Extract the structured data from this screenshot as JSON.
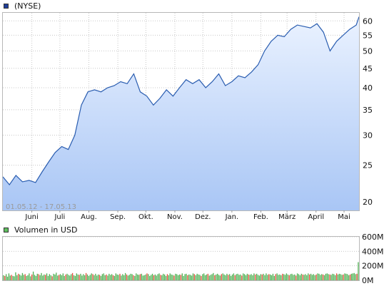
{
  "price_legend": {
    "label": "(NYSE)",
    "color": "#1f3f99"
  },
  "volume_legend": {
    "label": "Volumen in USD",
    "color": "#5fbf5f"
  },
  "date_range_label": "01.05.12 - 17.05.13",
  "colors": {
    "line": "#2a5db0",
    "fill_top": "#eaf2ff",
    "fill_bottom": "#a9c6f5",
    "vol_up": "#4caf50",
    "vol_down": "#e74c3c",
    "grid": "#c8c8c8"
  },
  "chart_data": [
    {
      "type": "area",
      "y_scale": "log",
      "ylim": [
        19,
        63
      ],
      "yticks": [
        20,
        25,
        30,
        35,
        40,
        45,
        50,
        55,
        60
      ],
      "x_month_labels": [
        "Juni",
        "Juli",
        "Aug.",
        "Sep.",
        "Okt.",
        "Nov.",
        "Dez.",
        "Jan.",
        "Feb.",
        "März",
        "April",
        "Mai"
      ],
      "grid": true,
      "x_range": [
        "2012-05-01",
        "2013-05-17"
      ],
      "series": [
        {
          "x": [
            "2012-05-01",
            "2012-05-08",
            "2012-05-15",
            "2012-05-22",
            "2012-05-29",
            "2012-06-05",
            "2012-06-12",
            "2012-06-19",
            "2012-06-26",
            "2012-07-03",
            "2012-07-10",
            "2012-07-17",
            "2012-07-24",
            "2012-07-31",
            "2012-08-07",
            "2012-08-14",
            "2012-08-21",
            "2012-08-28",
            "2012-09-04",
            "2012-09-11",
            "2012-09-18",
            "2012-09-25",
            "2012-10-02",
            "2012-10-09",
            "2012-10-16",
            "2012-10-23",
            "2012-10-30",
            "2012-11-06",
            "2012-11-13",
            "2012-11-20",
            "2012-11-27",
            "2012-12-04",
            "2012-12-11",
            "2012-12-18",
            "2012-12-25",
            "2013-01-01",
            "2013-01-08",
            "2013-01-15",
            "2013-01-22",
            "2013-01-29",
            "2013-02-05",
            "2013-02-12",
            "2013-02-19",
            "2013-02-26",
            "2013-03-05",
            "2013-03-12",
            "2013-03-19",
            "2013-03-26",
            "2013-04-02",
            "2013-04-09",
            "2013-04-16",
            "2013-04-23",
            "2013-04-30",
            "2013-05-07",
            "2013-05-14",
            "2013-05-17"
          ],
          "values": [
            23.3,
            22.2,
            23.5,
            22.6,
            22.8,
            22.5,
            24.0,
            25.5,
            27.0,
            28.0,
            27.5,
            30.0,
            36.0,
            39.0,
            39.5,
            39.0,
            40.0,
            40.5,
            41.5,
            41.0,
            43.5,
            39.0,
            38.0,
            36.0,
            37.5,
            39.5,
            38.0,
            40.0,
            42.0,
            41.0,
            42.0,
            40.0,
            41.5,
            43.5,
            40.5,
            41.5,
            43.0,
            42.5,
            44.0,
            46.0,
            50.0,
            53.0,
            55.0,
            54.5,
            57.0,
            58.5,
            58.0,
            57.5,
            59.0,
            56.0,
            50.0,
            53.0,
            55.0,
            57.0,
            58.5,
            61.5
          ]
        }
      ]
    },
    {
      "type": "bar",
      "ylim": [
        0,
        600
      ],
      "yticks_labels": [
        "0M",
        "200M",
        "400M",
        "600M"
      ],
      "ytick_values": [
        0,
        200,
        400,
        600
      ],
      "volume_levels_M": [
        70,
        60,
        85,
        50,
        95,
        65,
        75,
        60,
        55,
        110,
        70,
        90,
        80,
        65,
        100,
        75,
        85,
        60,
        70,
        95,
        55,
        80,
        120,
        75,
        60,
        90,
        85,
        70,
        100,
        65,
        80,
        75,
        95,
        60,
        85,
        70,
        55,
        90,
        80,
        105,
        65,
        75,
        85,
        70,
        95,
        60,
        80,
        90,
        75,
        65,
        85,
        100,
        70,
        60,
        95,
        80,
        75,
        90,
        65,
        85,
        70,
        100,
        80,
        60,
        75,
        95,
        85,
        70,
        90,
        65,
        80,
        75,
        60,
        85,
        95,
        70,
        80,
        65,
        90,
        75,
        85,
        70,
        60,
        95,
        80,
        75,
        90,
        65,
        85,
        70,
        100,
        80,
        65,
        75,
        90,
        85,
        70,
        60,
        95,
        80,
        75,
        85,
        90,
        65,
        70,
        80,
        95,
        85,
        60,
        75,
        90,
        70,
        80,
        65,
        85,
        95,
        75,
        70,
        90,
        80,
        60,
        85,
        70,
        95,
        80,
        75,
        65,
        90,
        85,
        70,
        80,
        75,
        95,
        60,
        85,
        90,
        70,
        80,
        75,
        65,
        95,
        85,
        70,
        90,
        80,
        75,
        60,
        85,
        95,
        70,
        80,
        90,
        65,
        75,
        85,
        100,
        70,
        80,
        90,
        75,
        65,
        85,
        95,
        80,
        70,
        90,
        75,
        85,
        60,
        80,
        95,
        70,
        85,
        90,
        75,
        80,
        65,
        95,
        85,
        70,
        90,
        80,
        75,
        85,
        70,
        95,
        80,
        90,
        75,
        65,
        85,
        80,
        90,
        70,
        95,
        75,
        85,
        80,
        70,
        90,
        60,
        85,
        95,
        75,
        80,
        70,
        90,
        85,
        75,
        95,
        80,
        70,
        85,
        90,
        75,
        80,
        65,
        95,
        85,
        70,
        90,
        80,
        75,
        85,
        70,
        95,
        80,
        90,
        75,
        85,
        70,
        80,
        95,
        90,
        75,
        85,
        80,
        70,
        90,
        95,
        85,
        80,
        75,
        90,
        85,
        70,
        95,
        80,
        90,
        85,
        75,
        80,
        95,
        90,
        85,
        70,
        80,
        90,
        95,
        100,
        85,
        90,
        250
      ]
    }
  ]
}
